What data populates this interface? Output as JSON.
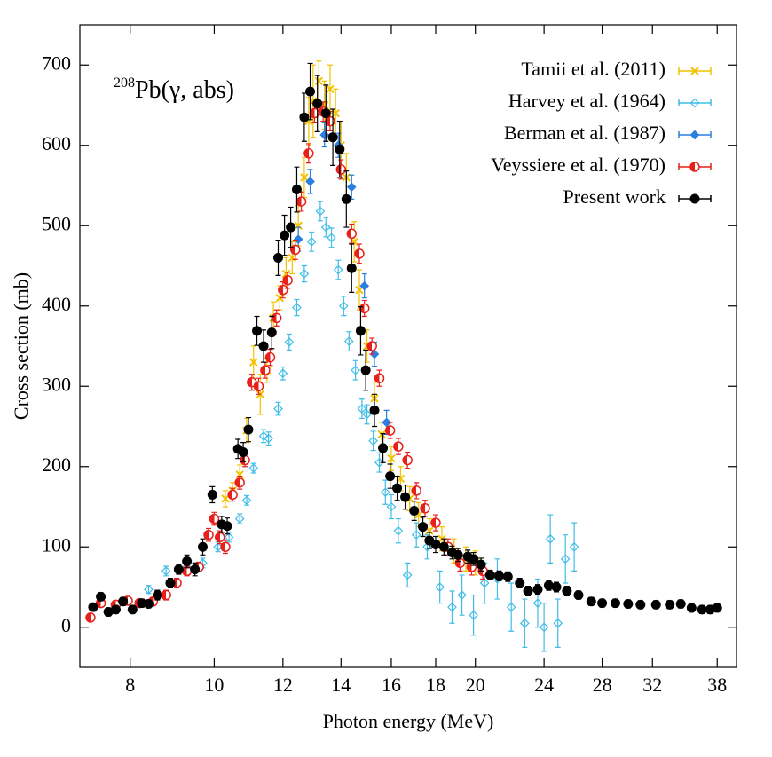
{
  "chart_data": {
    "type": "errorbar-scatter",
    "xlabel": "Photon energy (MeV)",
    "ylabel": "Cross section (mb)",
    "annotation_superscript": "208",
    "annotation": "Pb(γ, abs)",
    "xscale": "log",
    "xlim": [
      7,
      40
    ],
    "xticks": [
      8,
      10,
      12,
      14,
      16,
      18,
      20,
      24,
      28,
      32,
      38
    ],
    "ylim": [
      -50,
      750
    ],
    "yticks": [
      0,
      100,
      200,
      300,
      400,
      500,
      600,
      700
    ],
    "legend": "upper right",
    "series": [
      {
        "name": "Tamii et al. (2011)",
        "color": "#f2c200",
        "marker": "x",
        "x": [
          10.3,
          10.5,
          10.7,
          10.9,
          11.1,
          11.3,
          11.5,
          11.7,
          11.9,
          12.1,
          12.3,
          12.5,
          12.7,
          12.85,
          13.0,
          13.2,
          13.4,
          13.6,
          13.8,
          14.0,
          14.2,
          14.5,
          14.7,
          15.0,
          15.3,
          15.6,
          16.0,
          16.4,
          16.8,
          17.2,
          17.7,
          18.3,
          18.9,
          19.5,
          20.0
        ],
        "values": [
          160,
          170,
          190,
          245,
          330,
          290,
          320,
          385,
          410,
          440,
          460,
          500,
          560,
          630,
          655,
          680,
          650,
          670,
          640,
          600,
          560,
          480,
          420,
          350,
          285,
          240,
          210,
          185,
          160,
          140,
          120,
          110,
          95,
          85,
          80
        ],
        "errors": [
          10,
          10,
          12,
          15,
          20,
          25,
          15,
          20,
          15,
          20,
          20,
          25,
          25,
          30,
          45,
          25,
          30,
          30,
          30,
          30,
          30,
          25,
          25,
          20,
          20,
          15,
          15,
          15,
          15,
          15,
          15,
          15,
          15,
          15,
          15
        ]
      },
      {
        "name": "Harvey et al. (1964)",
        "color": "#3fbde8",
        "marker": "diamond-open",
        "x": [
          8.4,
          8.8,
          9.3,
          9.7,
          10.1,
          10.4,
          10.7,
          10.9,
          11.1,
          11.4,
          11.55,
          11.85,
          12.0,
          12.2,
          12.45,
          12.7,
          12.95,
          13.25,
          13.45,
          13.65,
          13.9,
          14.1,
          14.3,
          14.55,
          14.8,
          15.0,
          15.25,
          15.5,
          15.75,
          16.0,
          16.3,
          16.7,
          17.1,
          17.6,
          18.2,
          18.8,
          19.3,
          19.9,
          20.5,
          21.2,
          22.0,
          22.8,
          23.6,
          24.0,
          24.4,
          24.9,
          25.4,
          26.0
        ],
        "values": [
          47,
          70,
          75,
          80,
          100,
          112,
          135,
          158,
          198,
          238,
          235,
          272,
          316,
          355,
          398,
          440,
          480,
          518,
          498,
          485,
          445,
          400,
          356,
          320,
          272,
          265,
          232,
          205,
          168,
          150,
          120,
          65,
          115,
          100,
          50,
          25,
          40,
          15,
          55,
          60,
          25,
          5,
          30,
          0,
          110,
          5,
          85,
          100
        ],
        "errors": [
          5,
          6,
          6,
          6,
          6,
          6,
          6,
          6,
          6,
          8,
          8,
          8,
          8,
          10,
          10,
          10,
          12,
          12,
          12,
          12,
          12,
          12,
          12,
          12,
          12,
          12,
          12,
          12,
          15,
          15,
          15,
          15,
          15,
          15,
          20,
          20,
          25,
          25,
          25,
          25,
          30,
          30,
          30,
          30,
          30,
          30,
          30,
          30
        ]
      },
      {
        "name": "Berman et al. (1987)",
        "color": "#2a7fe0",
        "marker": "diamond",
        "x": [
          12.5,
          12.9,
          13.4,
          13.9,
          14.4,
          14.9,
          15.3,
          15.8
        ],
        "values": [
          483,
          555,
          613,
          600,
          548,
          425,
          340,
          255
        ],
        "errors": [
          15,
          15,
          15,
          15,
          15,
          15,
          15,
          15
        ]
      },
      {
        "name": "Veyssiere et al. (1970)",
        "color": "#e8201a",
        "marker": "half-circle",
        "x": [
          7.2,
          7.4,
          7.7,
          7.95,
          8.2,
          8.5,
          8.8,
          9.05,
          9.3,
          9.6,
          9.85,
          10.0,
          10.15,
          10.3,
          10.5,
          10.7,
          10.85,
          11.05,
          11.25,
          11.45,
          11.6,
          11.8,
          12.0,
          12.15,
          12.4,
          12.6,
          12.85,
          13.05,
          13.35,
          13.6,
          14.0,
          14.4,
          14.7,
          14.9,
          15.2,
          15.5,
          15.95,
          16.3,
          16.7,
          17.1,
          17.5,
          18.0,
          18.6,
          19.2,
          19.8,
          20.4
        ],
        "values": [
          12,
          30,
          28,
          33,
          30,
          32,
          40,
          55,
          70,
          75,
          115,
          135,
          112,
          100,
          165,
          180,
          208,
          305,
          300,
          320,
          336,
          385,
          420,
          432,
          470,
          530,
          590,
          640,
          642,
          630,
          570,
          490,
          465,
          397,
          350,
          310,
          245,
          225,
          208,
          170,
          148,
          130,
          100,
          80,
          75,
          70
        ],
        "errors": [
          5,
          5,
          5,
          5,
          5,
          5,
          6,
          6,
          6,
          6,
          8,
          8,
          8,
          8,
          8,
          8,
          8,
          10,
          10,
          10,
          10,
          10,
          10,
          10,
          12,
          12,
          12,
          12,
          12,
          12,
          12,
          12,
          12,
          10,
          10,
          10,
          10,
          10,
          10,
          10,
          10,
          10,
          10,
          10,
          10,
          10
        ]
      },
      {
        "name": "Present work",
        "color": "#000000",
        "marker": "circle",
        "x": [
          7.25,
          7.4,
          7.55,
          7.7,
          7.85,
          8.05,
          8.25,
          8.4,
          8.6,
          8.9,
          9.1,
          9.3,
          9.5,
          9.7,
          9.95,
          10.2,
          10.35,
          10.65,
          10.8,
          10.95,
          11.2,
          11.4,
          11.65,
          11.85,
          12.05,
          12.25,
          12.45,
          12.7,
          12.9,
          13.15,
          13.45,
          13.7,
          13.95,
          14.2,
          14.4,
          14.75,
          14.95,
          15.3,
          15.65,
          15.95,
          16.25,
          16.6,
          17.0,
          17.4,
          17.7,
          18.0,
          18.4,
          18.8,
          19.1,
          19.6,
          19.9,
          20.3,
          20.8,
          21.3,
          21.8,
          22.5,
          23.0,
          23.6,
          24.3,
          24.8,
          25.5,
          26.3,
          27.2,
          28.0,
          29.0,
          30.0,
          31.0,
          32.3,
          33.5,
          34.5,
          35.5,
          36.5,
          37.3,
          38.0
        ],
        "values": [
          25,
          38,
          19,
          22,
          32,
          22,
          30,
          29,
          40,
          55,
          72,
          82,
          72,
          100,
          165,
          128,
          126,
          222,
          218,
          246,
          369,
          350,
          367,
          460,
          488,
          498,
          545,
          635,
          667,
          652,
          640,
          610,
          595,
          533,
          447,
          369,
          320,
          270,
          223,
          188,
          173,
          162,
          145,
          125,
          108,
          103,
          100,
          93,
          90,
          88,
          85,
          78,
          65,
          64,
          63,
          55,
          45,
          47,
          52,
          50,
          45,
          40,
          32,
          30,
          30,
          29,
          28,
          28,
          28,
          29,
          24,
          22,
          22,
          24
        ],
        "errors": [
          5,
          5,
          5,
          5,
          5,
          5,
          5,
          5,
          6,
          6,
          6,
          8,
          8,
          10,
          10,
          10,
          10,
          12,
          12,
          15,
          18,
          20,
          20,
          22,
          25,
          25,
          28,
          30,
          35,
          35,
          35,
          35,
          35,
          35,
          30,
          30,
          25,
          20,
          18,
          15,
          15,
          15,
          12,
          12,
          10,
          10,
          10,
          8,
          8,
          8,
          8,
          8,
          6,
          6,
          6,
          6,
          6,
          6,
          6,
          6,
          6,
          5,
          5,
          5,
          5,
          5,
          5,
          5,
          5,
          5,
          5,
          5,
          5,
          5
        ]
      }
    ]
  }
}
